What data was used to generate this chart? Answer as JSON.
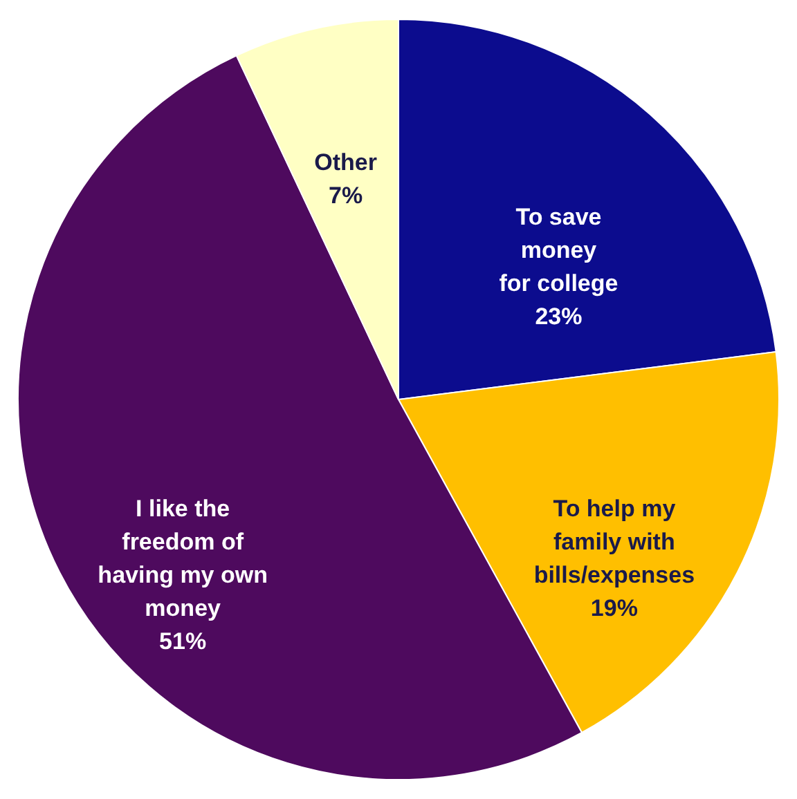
{
  "chart_data": {
    "type": "pie",
    "categories": [
      "To save\nmoney\nfor college",
      "To help my\nfamily with\nbills/expenses",
      "I like the\nfreedom of\nhaving my own\nmoney",
      "Other"
    ],
    "values": [
      23,
      19,
      51,
      7
    ],
    "colors": [
      "#0c0c8e",
      "#ffbf00",
      "#4e0a5e",
      "#ffffc4"
    ],
    "value_labels": [
      "23%",
      "19%",
      "51%",
      "7%"
    ]
  }
}
